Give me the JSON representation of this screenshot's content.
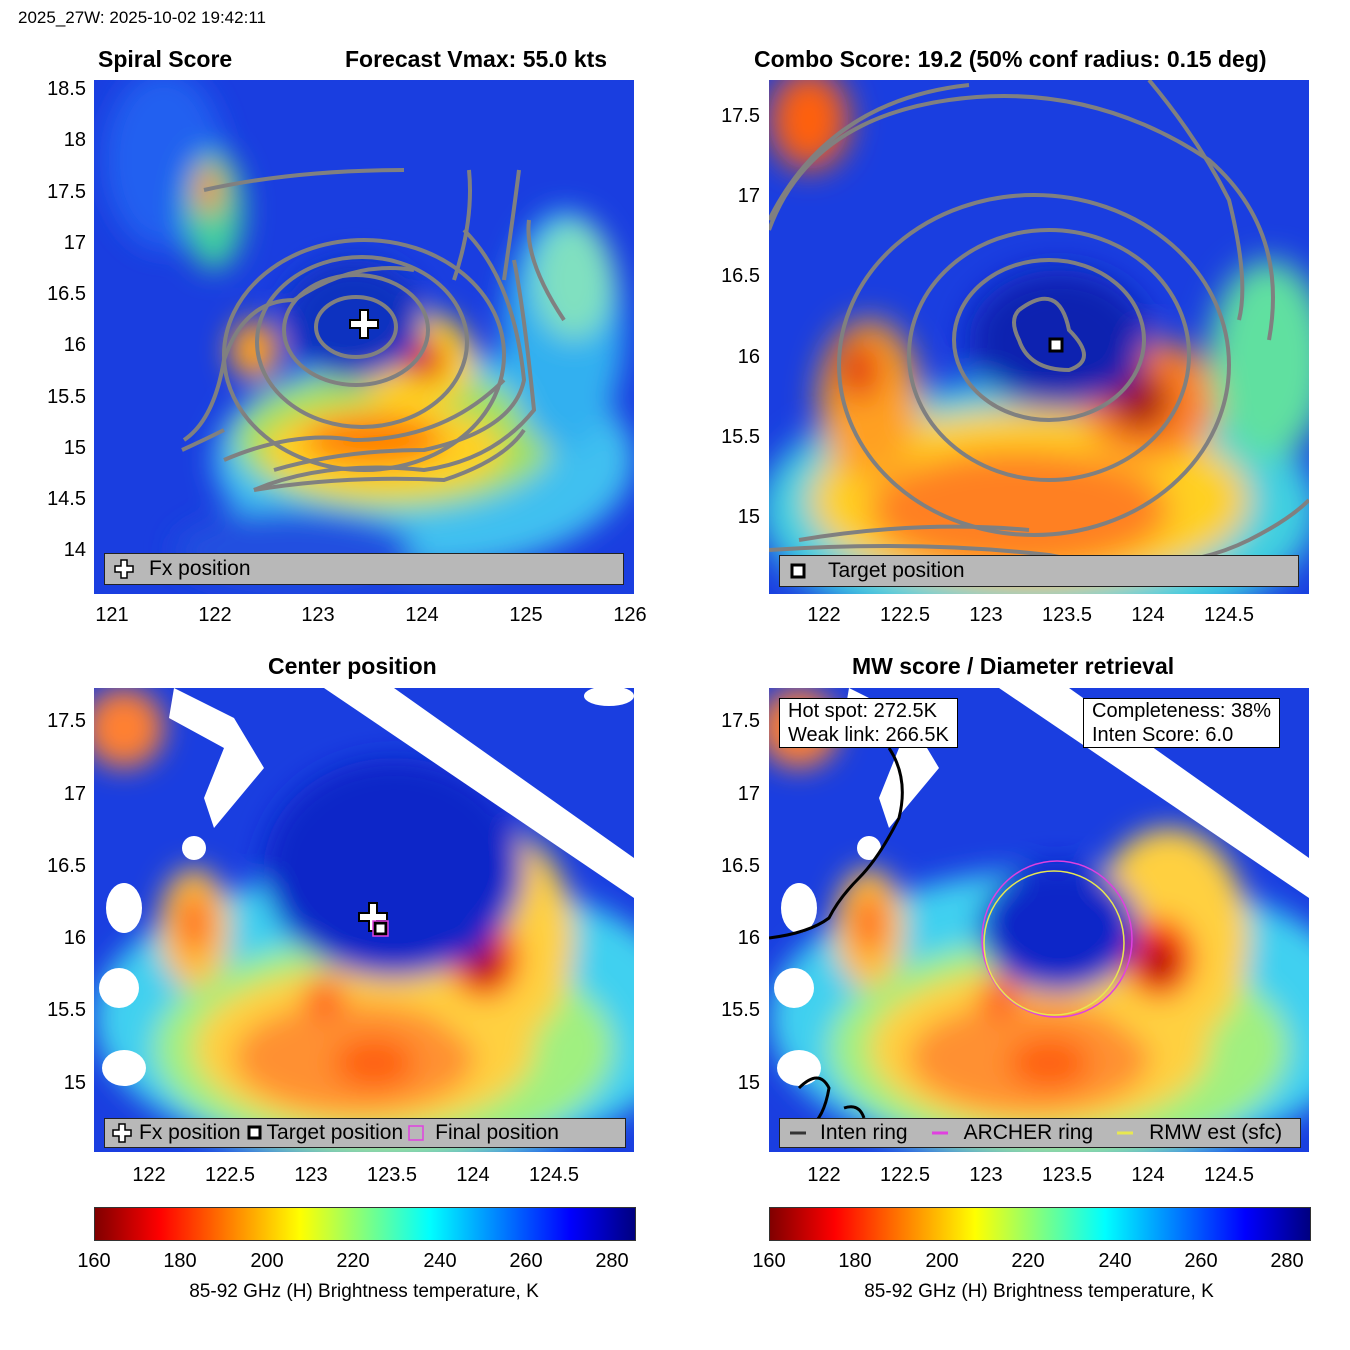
{
  "header": "2025_27W: 2025-10-02 19:42:11",
  "panels": {
    "spiral": {
      "title_left": "Spiral Score",
      "title_right": "Forecast Vmax: 55.0 kts",
      "yticks": [
        "18.5",
        "18",
        "17.5",
        "17",
        "16.5",
        "16",
        "15.5",
        "15",
        "14.5",
        "14"
      ],
      "xticks": [
        "121",
        "122",
        "123",
        "124",
        "125",
        "126"
      ],
      "legend": "Fx position"
    },
    "combo": {
      "title": "Combo Score: 19.2  (50% conf radius: 0.15 deg)",
      "yticks": [
        "17.5",
        "17",
        "16.5",
        "16",
        "15.5",
        "15"
      ],
      "xticks": [
        "122",
        "122.5",
        "123",
        "123.5",
        "124",
        "124.5"
      ],
      "legend": "Target position"
    },
    "center": {
      "title": "Center position",
      "yticks": [
        "17.5",
        "17",
        "16.5",
        "16",
        "15.5",
        "15"
      ],
      "xticks": [
        "122",
        "122.5",
        "123",
        "123.5",
        "124",
        "124.5"
      ],
      "legend": [
        "Fx position",
        "Target position",
        "Final position"
      ]
    },
    "mw": {
      "title": "MW score / Diameter retrieval",
      "yticks": [
        "17.5",
        "17",
        "16.5",
        "16",
        "15.5",
        "15"
      ],
      "xticks": [
        "122",
        "122.5",
        "123",
        "123.5",
        "124",
        "124.5"
      ],
      "info_left": [
        "Hot spot: 272.5K",
        "Weak link: 266.5K"
      ],
      "info_right": [
        "Completeness: 38%",
        "Inten Score: 6.0"
      ],
      "legend": [
        "Inten ring",
        "ARCHER ring",
        "RMW est (sfc)"
      ]
    }
  },
  "colorbar": {
    "ticks": [
      "160",
      "180",
      "200",
      "220",
      "240",
      "260",
      "280"
    ],
    "label": "85-92 GHz (H) Brightness temperature, K"
  },
  "chart_data": [
    {
      "type": "heatmap",
      "title": "Spiral Score",
      "subtitle": "Forecast Vmax: 55.0 kts",
      "xlim": [
        120.85,
        126.1
      ],
      "ylim": [
        13.55,
        18.6
      ],
      "fx_position": [
        123.32,
        16.12
      ]
    },
    {
      "type": "heatmap",
      "title": "Combo Score: 19.2  (50% conf radius: 0.15 deg)",
      "xlim": [
        121.65,
        125
      ],
      "ylim": [
        14.55,
        17.75
      ],
      "target_position": [
        123.43,
        16.07
      ]
    },
    {
      "type": "heatmap",
      "title": "Center position",
      "xlim": [
        121.65,
        125
      ],
      "ylim": [
        14.55,
        17.75
      ],
      "fx_position": [
        123.32,
        16.12
      ],
      "target_position": [
        123.43,
        16.07
      ],
      "final_position": [
        123.43,
        16.07
      ]
    },
    {
      "type": "heatmap",
      "title": "MW score / Diameter retrieval",
      "xlim": [
        121.65,
        125
      ],
      "ylim": [
        14.55,
        17.75
      ],
      "hot_spot_K": 272.5,
      "weak_link_K": 266.5,
      "completeness_pct": 38,
      "inten_score": 6.0
    },
    {
      "type": "colorbar",
      "range": [
        160,
        285
      ],
      "ticks": [
        160,
        180,
        200,
        220,
        240,
        260,
        280
      ],
      "label": "85-92 GHz (H) Brightness temperature, K"
    }
  ]
}
